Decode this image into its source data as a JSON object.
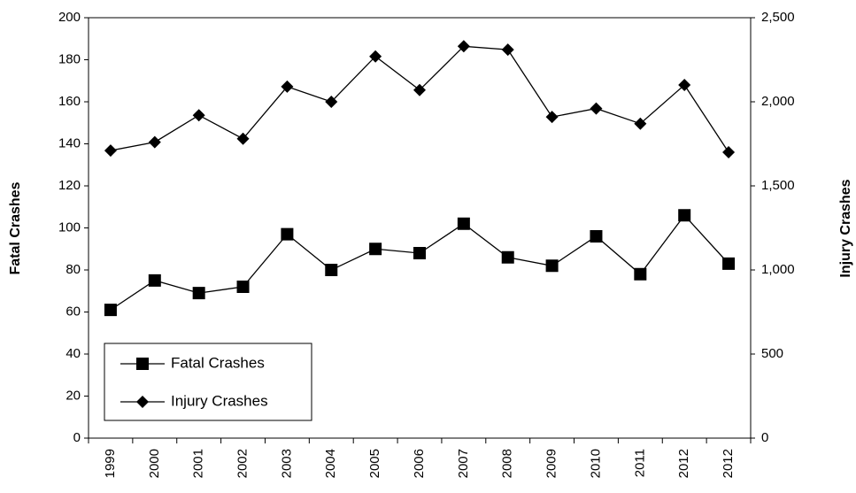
{
  "chart_data": {
    "type": "line",
    "y_label": "Fatal Crashes",
    "y2_label": "Injury Crashes",
    "categories": [
      "1999",
      "2000",
      "2001",
      "2002",
      "2003",
      "2004",
      "2005",
      "2006",
      "2007",
      "2008",
      "2009",
      "2010",
      "2011",
      "2012",
      "2012"
    ],
    "series": [
      {
        "name": "Fatal Crashes",
        "color": "#000000",
        "marker": "square",
        "axis": "y",
        "values": [
          61,
          75,
          69,
          72,
          97,
          80,
          90,
          88,
          102,
          86,
          82,
          96,
          78,
          106,
          83
        ]
      },
      {
        "name": "Injury Crashes",
        "color": "#000000",
        "marker": "diamond",
        "axis": "y2",
        "values": [
          1710,
          1760,
          1920,
          1780,
          2090,
          2000,
          2270,
          2070,
          2330,
          2310,
          1910,
          1960,
          1870,
          2100,
          1700
        ]
      }
    ],
    "ylim": [
      0,
      200
    ],
    "yticks": [
      0,
      20,
      40,
      60,
      80,
      100,
      120,
      140,
      160,
      180,
      200
    ],
    "y2lim": [
      0,
      2500
    ],
    "y2ticks": [
      0,
      500,
      {
        "value": 1000,
        "label": "1,000"
      },
      {
        "value": 1500,
        "label": "1,500"
      },
      {
        "value": 2000,
        "label": "2,000"
      },
      {
        "value": 2500,
        "label": "2,500"
      }
    ],
    "grid": false,
    "legend": "lower left"
  }
}
